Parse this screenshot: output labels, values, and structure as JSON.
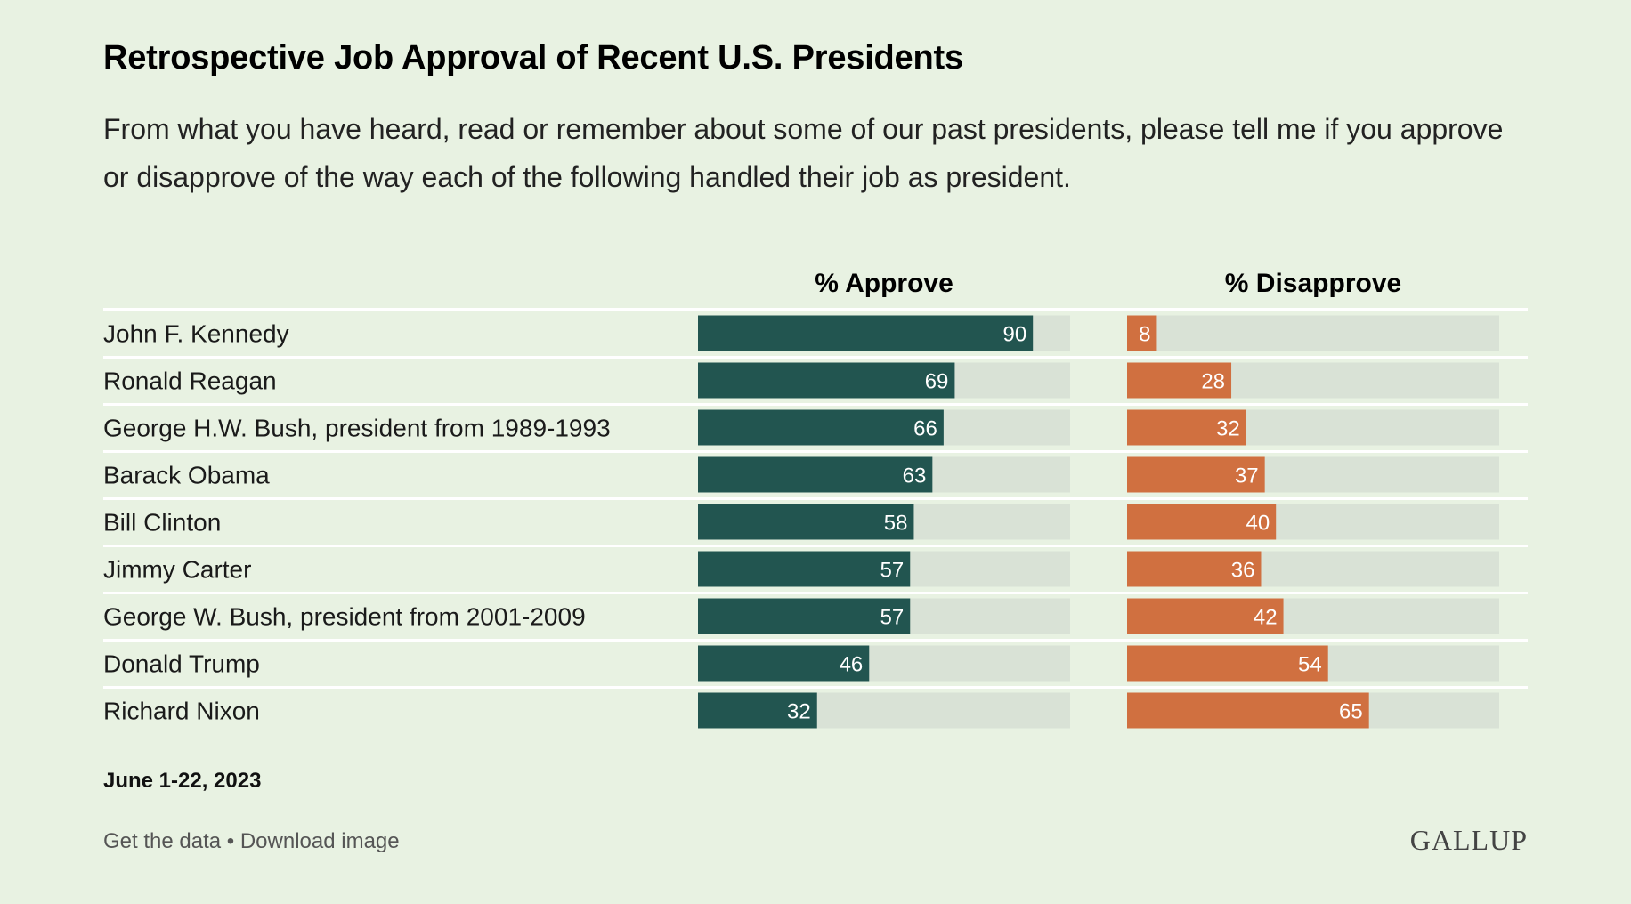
{
  "header": {
    "title": "Retrospective Job Approval of Recent U.S. Presidents",
    "subtitle": "From what you have heard, read or remember about some of our past presidents, please tell me if you approve or disapprove of the way each of the following handled their job as president."
  },
  "footer": {
    "date": "June 1-22, 2023",
    "get_data": "Get the data",
    "separator": "•",
    "download": "Download image",
    "logo": "GALLUP"
  },
  "colors": {
    "background": "#e8f2e2",
    "approve": "#225550",
    "disapprove": "#d07040",
    "track": "#d9e2d6",
    "divider": "#ffffff"
  },
  "chart_data": {
    "type": "bar",
    "orientation": "horizontal",
    "categories": [
      "John F. Kennedy",
      "Ronald Reagan",
      "George H.W. Bush, president from 1989-1993",
      "Barack Obama",
      "Bill Clinton",
      "Jimmy Carter",
      "George W. Bush, president from 2001-2009",
      "Donald Trump",
      "Richard Nixon"
    ],
    "series": [
      {
        "name": "% Approve",
        "values": [
          90,
          69,
          66,
          63,
          58,
          57,
          57,
          46,
          32
        ]
      },
      {
        "name": "% Disapprove",
        "values": [
          8,
          28,
          32,
          37,
          40,
          36,
          42,
          54,
          65
        ]
      }
    ],
    "xlim": [
      0,
      100
    ],
    "grid": false,
    "data_labels": true
  }
}
